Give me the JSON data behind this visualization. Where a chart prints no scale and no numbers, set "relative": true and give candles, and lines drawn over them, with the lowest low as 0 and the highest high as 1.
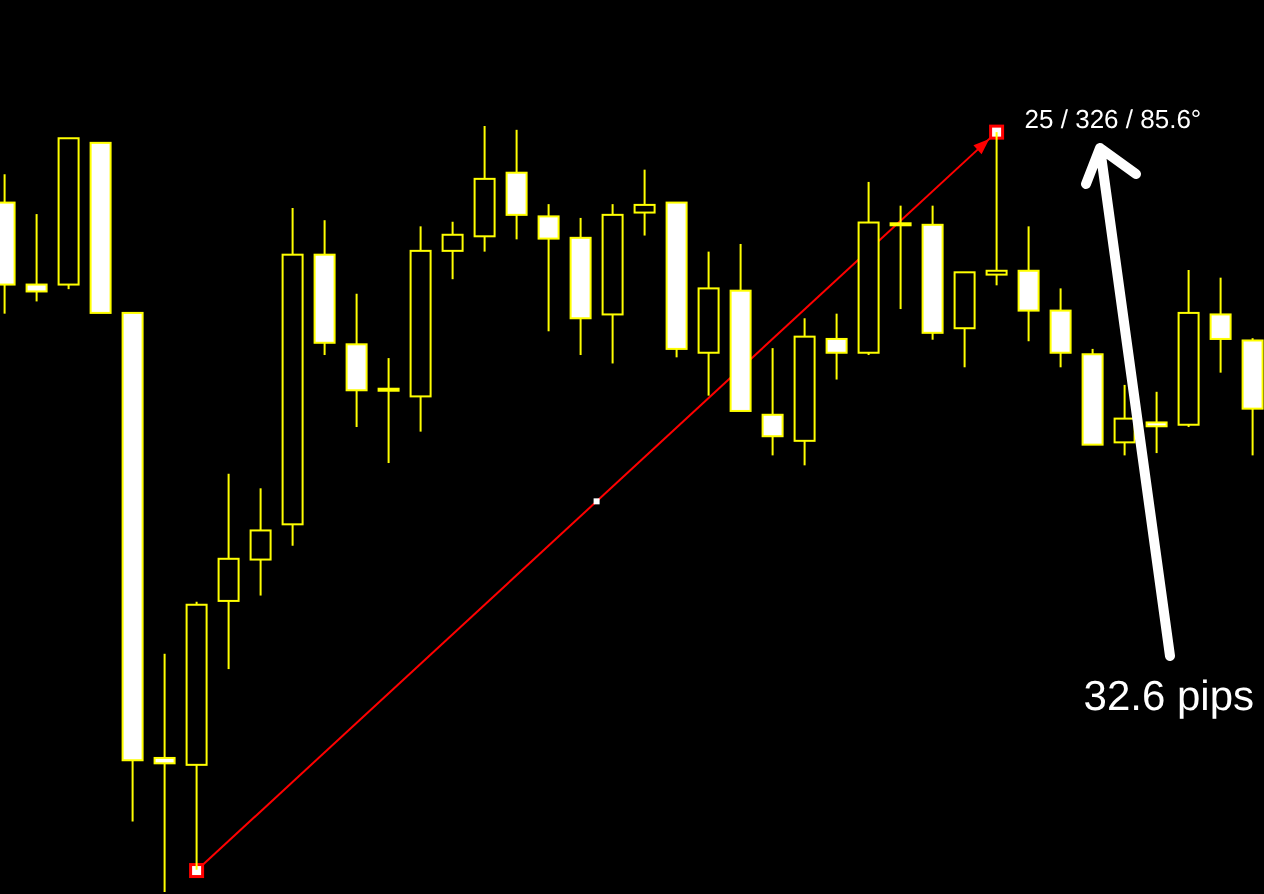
{
  "chart_data": {
    "type": "candlestick",
    "relative": true,
    "color": "#ffff00",
    "categories": [
      null,
      null,
      null,
      null,
      null,
      null,
      null,
      null,
      null,
      null,
      null,
      null,
      null,
      null,
      null,
      null,
      null,
      null,
      null,
      null,
      null,
      null,
      null,
      null,
      null,
      null,
      null,
      null,
      null,
      null,
      null,
      null,
      null,
      null,
      null,
      null,
      null,
      null,
      null,
      null
    ],
    "ohlc": [
      [
        0.9,
        0.937,
        0.755,
        0.793
      ],
      [
        0.793,
        0.885,
        0.771,
        0.784
      ],
      [
        0.793,
        0.984,
        0.787,
        0.984
      ],
      [
        0.978,
        0.978,
        0.756,
        0.756
      ],
      [
        0.756,
        0.756,
        0.092,
        0.172
      ],
      [
        0.175,
        0.311,
        0,
        0.168
      ],
      [
        0.166,
        0.379,
        0.029,
        0.375
      ],
      [
        0.38,
        0.546,
        0.291,
        0.435
      ],
      [
        0.434,
        0.527,
        0.387,
        0.472
      ],
      [
        0.48,
        0.893,
        0.452,
        0.832
      ],
      [
        0.832,
        0.877,
        0.701,
        0.717
      ],
      [
        0.715,
        0.781,
        0.607,
        0.655
      ],
      [
        0.657,
        0.697,
        0.56,
        0.657
      ],
      [
        0.647,
        0.869,
        0.601,
        0.837
      ],
      [
        0.837,
        0.875,
        0.8,
        0.858
      ],
      [
        0.856,
        1,
        0.836,
        0.931
      ],
      [
        0.939,
        0.995,
        0.852,
        0.884
      ],
      [
        0.882,
        0.898,
        0.732,
        0.853
      ],
      [
        0.854,
        0.88,
        0.701,
        0.749
      ],
      [
        0.754,
        0.898,
        0.69,
        0.884
      ],
      [
        0.887,
        0.943,
        0.857,
        0.897
      ],
      [
        0.9,
        0.9,
        0.698,
        0.709
      ],
      [
        0.704,
        0.836,
        0.648,
        0.788
      ],
      [
        0.785,
        0.846,
        0.628,
        0.628
      ],
      [
        0.623,
        0.71,
        0.57,
        0.595
      ],
      [
        0.589,
        0.749,
        0.557,
        0.725
      ],
      [
        0.722,
        0.755,
        0.669,
        0.704
      ],
      [
        0.704,
        0.927,
        0.701,
        0.874
      ],
      [
        0.873,
        0.896,
        0.761,
        0.873
      ],
      [
        0.871,
        0.896,
        0.721,
        0.73
      ],
      [
        0.736,
        0.809,
        0.685,
        0.809
      ],
      [
        0.806,
        0.992,
        0.792,
        0.811
      ],
      [
        0.811,
        0.869,
        0.719,
        0.759
      ],
      [
        0.759,
        0.788,
        0.685,
        0.704
      ],
      [
        0.702,
        0.709,
        0.584,
        0.584
      ],
      [
        0.587,
        0.662,
        0.57,
        0.618
      ],
      [
        0.613,
        0.653,
        0.573,
        0.608
      ],
      [
        0.61,
        0.812,
        0.607,
        0.756
      ],
      [
        0.754,
        0.802,
        0.678,
        0.722
      ],
      [
        0.72,
        0.723,
        0.57,
        0.631
      ]
    ],
    "series": [
      {
        "type": "line",
        "color": "#ff0000",
        "marker": "square",
        "values": [
          null,
          null,
          null,
          null,
          null,
          null,
          0.028,
          null,
          null,
          null,
          null,
          null,
          null,
          null,
          null,
          null,
          null,
          null,
          null,
          null,
          null,
          null,
          null,
          null,
          null,
          null,
          null,
          null,
          null,
          null,
          null,
          0.992,
          null,
          null,
          null,
          null,
          null,
          null,
          null,
          null
        ]
      }
    ],
    "annotations": [
      "25 / 326 / 85.6°",
      "32.6 pips"
    ]
  }
}
